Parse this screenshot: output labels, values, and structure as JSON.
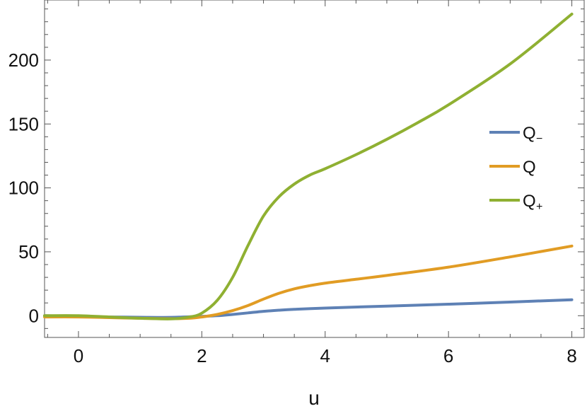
{
  "chart_data": {
    "type": "line",
    "xlabel": "u",
    "ylabel": "",
    "xlim": [
      -0.55,
      8.2
    ],
    "ylim": [
      -17,
      247
    ],
    "x_ticks": [
      0,
      2,
      4,
      6,
      8
    ],
    "y_ticks": [
      0,
      50,
      100,
      150,
      200
    ],
    "x_tick_labels": [
      "0",
      "2",
      "4",
      "6",
      "8"
    ],
    "y_tick_labels": [
      "0",
      "50",
      "100",
      "150",
      "200"
    ],
    "grid": false,
    "legend_position": "right",
    "series": [
      {
        "name": "Q",
        "subscript": "−",
        "color": "#5E81B5",
        "x": [
          -0.55,
          0,
          0.5,
          1,
          1.5,
          2,
          2.25,
          2.5,
          2.75,
          3,
          3.25,
          3.5,
          4,
          5,
          6,
          7,
          8
        ],
        "y": [
          0,
          -0.5,
          -1,
          -1.2,
          -1.3,
          -0.5,
          0,
          1,
          2.2,
          3.4,
          4.3,
          5,
          6,
          7.5,
          9,
          10.7,
          12.5
        ]
      },
      {
        "name": "Q",
        "subscript": "",
        "color": "#E19C24",
        "x": [
          -0.55,
          0,
          0.5,
          1,
          1.5,
          1.8,
          2,
          2.25,
          2.5,
          2.75,
          3,
          3.25,
          3.5,
          3.75,
          4,
          4.5,
          5,
          6,
          7,
          8
        ],
        "y": [
          -1,
          -1,
          -1.5,
          -2,
          -2.3,
          -2,
          -1,
          1,
          4,
          8,
          13,
          17.5,
          21,
          23.5,
          25.5,
          28.5,
          31.5,
          38,
          46,
          54.5
        ]
      },
      {
        "name": "Q",
        "subscript": "+",
        "color": "#8FB032",
        "x": [
          -0.55,
          0,
          0.5,
          1,
          1.5,
          1.8,
          2,
          2.25,
          2.5,
          2.75,
          3,
          3.25,
          3.5,
          3.75,
          4,
          4.5,
          5,
          5.5,
          6,
          7,
          8
        ],
        "y": [
          0,
          0,
          -1,
          -2,
          -2.5,
          -1,
          2,
          12,
          30,
          55,
          78,
          93,
          103,
          110,
          115,
          126,
          138,
          151,
          165,
          197,
          236
        ]
      }
    ]
  }
}
